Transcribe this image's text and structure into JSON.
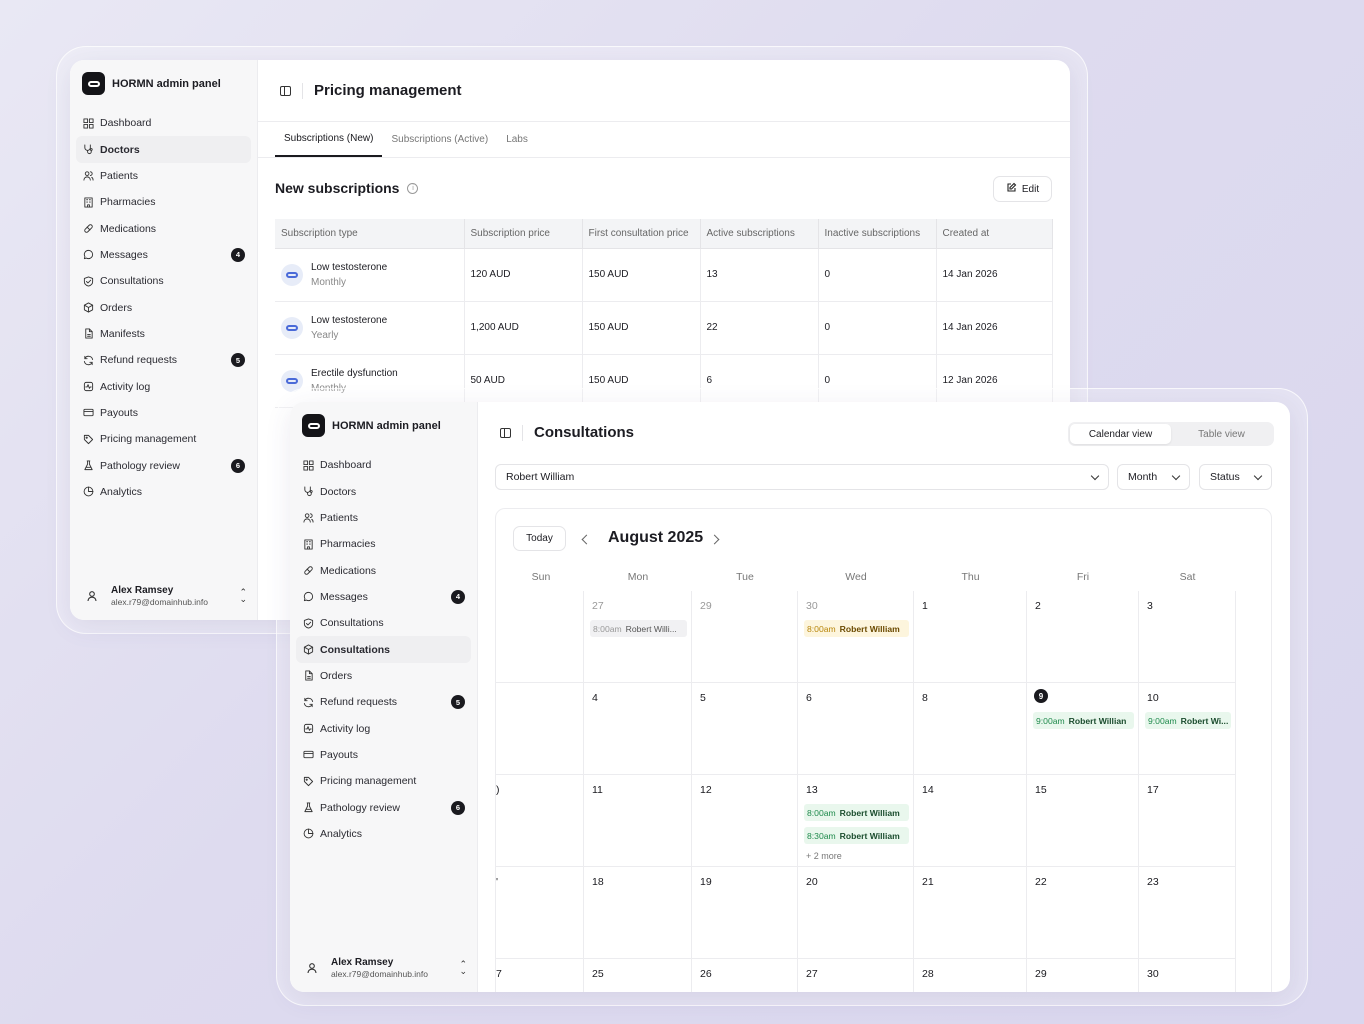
{
  "nav_icons": [
    "grid-icon",
    "stethoscope-icon",
    "users-icon",
    "building-icon",
    "pill-icon",
    "message-icon",
    "shield-icon",
    "package-icon",
    "file-icon",
    "refresh-icon",
    "activity-icon",
    "card-icon",
    "tag-icon",
    "flask-icon",
    "chart-pie-icon"
  ],
  "back": {
    "brand": "HORMN admin panel",
    "nav": [
      {
        "label": "Dashboard"
      },
      {
        "label": "Doctors"
      },
      {
        "label": "Patients"
      },
      {
        "label": "Pharmacies"
      },
      {
        "label": "Medications"
      },
      {
        "label": "Messages",
        "badge": "4"
      },
      {
        "label": "Consultations"
      },
      {
        "label": "Orders"
      },
      {
        "label": "Manifests"
      },
      {
        "label": "Refund requests",
        "badge": "5"
      },
      {
        "label": "Activity log"
      },
      {
        "label": "Payouts"
      },
      {
        "label": "Pricing management"
      },
      {
        "label": "Pathology review",
        "badge": "6"
      },
      {
        "label": "Analytics"
      }
    ],
    "user": {
      "name": "Alex Ramsey",
      "email": "alex.r79@domainhub.info"
    },
    "title": "Pricing management",
    "tabs": [
      "Subscriptions (New)",
      "Subscriptions (Active)",
      "Labs"
    ],
    "section_title": "New subscriptions",
    "edit_label": "Edit",
    "columns": [
      "Subscription type",
      "Subscription price",
      "First consultation price",
      "Active subscriptions",
      "Inactive subscriptions",
      "Created at"
    ],
    "rows": [
      {
        "type": "Low testosterone",
        "freq": "Monthly",
        "price": "120 AUD",
        "first": "150 AUD",
        "active": "13",
        "inactive": "0",
        "created": "14 Jan 2026"
      },
      {
        "type": "Low testosterone",
        "freq": "Yearly",
        "price": "1,200 AUD",
        "first": "150 AUD",
        "active": "22",
        "inactive": "0",
        "created": "14 Jan 2026"
      },
      {
        "type": "Erectile dysfunction",
        "freq": "Monthly",
        "price": "50 AUD",
        "first": "150 AUD",
        "active": "6",
        "inactive": "0",
        "created": "12 Jan 2026"
      }
    ]
  },
  "front": {
    "brand": "HORMN admin panel",
    "nav": [
      {
        "label": "Dashboard"
      },
      {
        "label": "Doctors"
      },
      {
        "label": "Patients"
      },
      {
        "label": "Pharmacies"
      },
      {
        "label": "Medications"
      },
      {
        "label": "Messages",
        "badge": "4"
      },
      {
        "label": "Consultations"
      },
      {
        "label": "Consultations"
      },
      {
        "label": "Orders"
      },
      {
        "label": "Refund requests",
        "badge": "5"
      },
      {
        "label": "Activity log"
      },
      {
        "label": "Payouts"
      },
      {
        "label": "Pricing management"
      },
      {
        "label": "Pathology review",
        "badge": "6"
      },
      {
        "label": "Analytics"
      }
    ],
    "user": {
      "name": "Alex Ramsey",
      "email": "alex.r79@domainhub.info"
    },
    "title": "Consultations",
    "view_toggle": [
      "Calendar view",
      "Table view"
    ],
    "doctor_select": "Robert William",
    "range_select": "Month",
    "status_select": "Status",
    "today_label": "Today",
    "month_label": "August 2025",
    "weekdays": [
      "Sun",
      "Mon",
      "Tue",
      "Wed",
      "Thu",
      "Fri",
      "Sat"
    ],
    "weeks": [
      [
        {
          "d": ""
        },
        {
          "d": "27",
          "muted": true,
          "events": [
            {
              "time": "8:00am",
              "name": "Robert Willi...",
              "kind": "grey"
            }
          ]
        },
        {
          "d": "29",
          "muted": true
        },
        {
          "d": "30",
          "muted": true,
          "events": [
            {
              "time": "8:00am",
              "name": "Robert William",
              "kind": "yellow"
            }
          ]
        },
        {
          "d": "1"
        },
        {
          "d": "2"
        },
        {
          "d": "3"
        }
      ],
      [
        {
          "d": ""
        },
        {
          "d": "4"
        },
        {
          "d": "5"
        },
        {
          "d": "6"
        },
        {
          "d": "8"
        },
        {
          "d": "9",
          "today": true,
          "events": [
            {
              "time": "9:00am",
              "name": "Robert Willian",
              "kind": "green"
            }
          ]
        },
        {
          "d": "10",
          "events": [
            {
              "time": "9:00am",
              "name": "Robert Wi...",
              "kind": "green"
            }
          ]
        }
      ],
      [
        {
          "d": ")"
        },
        {
          "d": "11"
        },
        {
          "d": "12"
        },
        {
          "d": "13",
          "events": [
            {
              "time": "8:00am",
              "name": "Robert William",
              "kind": "green"
            },
            {
              "time": "8:30am",
              "name": "Robert William",
              "kind": "green"
            }
          ],
          "more": "+ 2 more"
        },
        {
          "d": "14"
        },
        {
          "d": "15"
        },
        {
          "d": "17"
        }
      ],
      [
        {
          "d": "'"
        },
        {
          "d": "18"
        },
        {
          "d": "19"
        },
        {
          "d": "20"
        },
        {
          "d": "21"
        },
        {
          "d": "22"
        },
        {
          "d": "23"
        }
      ],
      [
        {
          "d": "7"
        },
        {
          "d": "25"
        },
        {
          "d": "26"
        },
        {
          "d": "27"
        },
        {
          "d": "28"
        },
        {
          "d": "29"
        },
        {
          "d": "30"
        }
      ]
    ]
  }
}
